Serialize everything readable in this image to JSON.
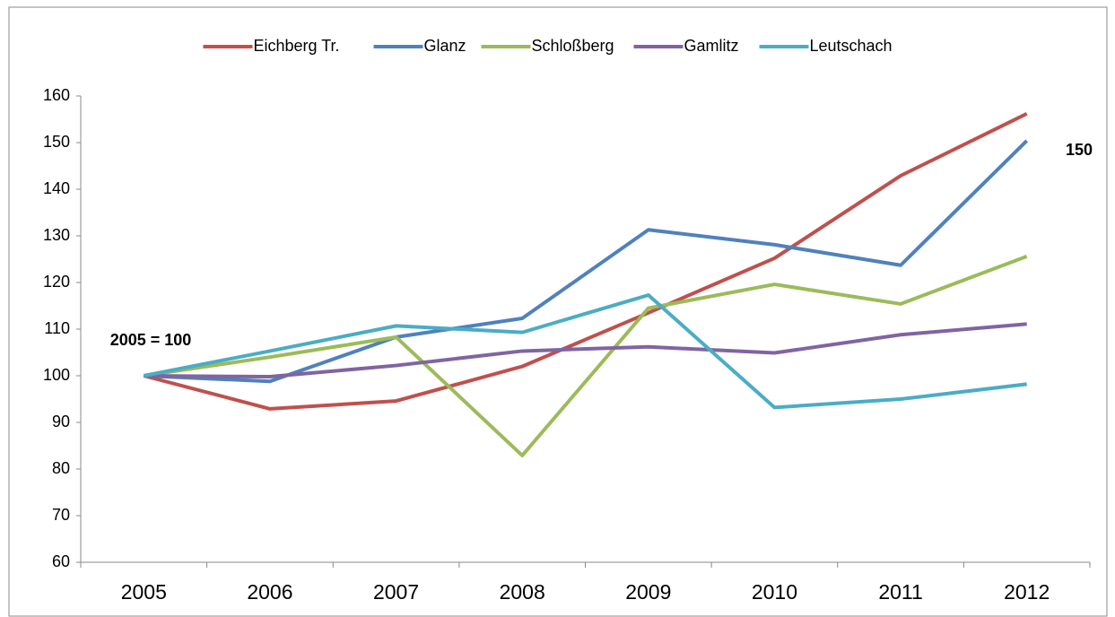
{
  "chart_data": {
    "type": "line",
    "categories": [
      "2005",
      "2006",
      "2007",
      "2008",
      "2009",
      "2010",
      "2011",
      "2012"
    ],
    "series": [
      {
        "name": "Eichberg Tr.",
        "color": "#c0504d",
        "values": [
          100,
          92.9,
          94.6,
          102,
          113.5,
          125.2,
          142.9,
          156.2
        ]
      },
      {
        "name": "Glanz",
        "color": "#4f81bd",
        "values": [
          100,
          98.8,
          108.3,
          112.3,
          131.3,
          128.1,
          123.7,
          150.4
        ]
      },
      {
        "name": "Schloßberg",
        "color": "#9bbb59",
        "values": [
          100,
          104,
          108.3,
          82.9,
          114.5,
          119.6,
          115.4,
          125.6
        ]
      },
      {
        "name": "Gamlitz",
        "color": "#8064a2",
        "values": [
          100,
          99.8,
          102.2,
          105.3,
          106.2,
          104.9,
          108.8,
          111.1
        ]
      },
      {
        "name": "Leutschach",
        "color": "#4bacc6",
        "values": [
          100,
          105.3,
          110.7,
          109.3,
          117.3,
          93.2,
          95.0,
          98.2
        ]
      }
    ],
    "ylim": [
      60,
      160
    ],
    "yticks": [
      60,
      70,
      80,
      90,
      100,
      110,
      120,
      130,
      140,
      150,
      160
    ],
    "grid": false,
    "legend": "top",
    "annotations": [
      {
        "text": "2005 = 100"
      },
      {
        "text": "150"
      }
    ]
  }
}
